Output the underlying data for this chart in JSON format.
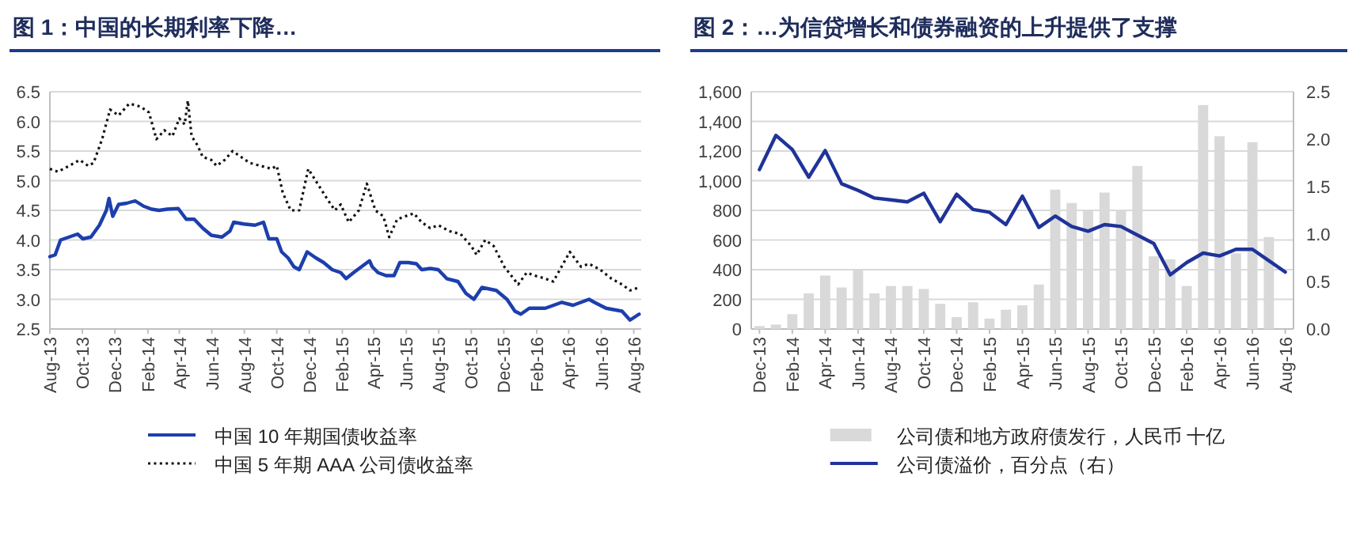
{
  "chart_data": [
    {
      "type": "line",
      "title": "图 1：中国的长期利率下降…",
      "xlim": [
        "2013-08-01",
        "2016-08-15"
      ],
      "ylim": [
        2.5,
        6.5
      ],
      "xticks": [
        {
          "value": "2013-08",
          "label": "Aug-13"
        },
        {
          "value": "2013-10",
          "label": "Oct-13"
        },
        {
          "value": "2013-12",
          "label": "Dec-13"
        },
        {
          "value": "2014-02",
          "label": "Feb-14"
        },
        {
          "value": "2014-04",
          "label": "Apr-14"
        },
        {
          "value": "2014-06",
          "label": "Jun-14"
        },
        {
          "value": "2014-08",
          "label": "Aug-14"
        },
        {
          "value": "2014-10",
          "label": "Oct-14"
        },
        {
          "value": "2014-12",
          "label": "Dec-14"
        },
        {
          "value": "2015-02",
          "label": "Feb-15"
        },
        {
          "value": "2015-04",
          "label": "Apr-15"
        },
        {
          "value": "2015-06",
          "label": "Jun-15"
        },
        {
          "value": "2015-08",
          "label": "Aug-15"
        },
        {
          "value": "2015-10",
          "label": "Oct-15"
        },
        {
          "value": "2015-12",
          "label": "Dec-15"
        },
        {
          "value": "2016-02",
          "label": "Feb-16"
        },
        {
          "value": "2016-04",
          "label": "Apr-16"
        },
        {
          "value": "2016-06",
          "label": "Jun-16"
        },
        {
          "value": "2016-08",
          "label": "Aug-16"
        }
      ],
      "yticks": [
        2.5,
        {
          "value": 3,
          "label": "3.0"
        },
        3.5,
        {
          "value": 4,
          "label": "4.0"
        },
        4.5,
        {
          "value": 5,
          "label": "5.0"
        },
        5.5,
        {
          "value": 6,
          "label": "6.0"
        },
        6.5
      ],
      "grid": "y",
      "legend": "bottom",
      "series": [
        {
          "name": "中国 10 年期国债收益率",
          "color": "#1d3fad",
          "line_style": "solid",
          "x": [
            "2013-08-01",
            "2013-08-11",
            "2013-08-21",
            "2013-09-06",
            "2013-09-22",
            "2013-10-02",
            "2013-10-17",
            "2013-11-02",
            "2013-11-15",
            "2013-11-20",
            "2013-11-27",
            "2013-12-08",
            "2013-12-23",
            "2014-01-08",
            "2014-01-24",
            "2014-02-08",
            "2014-02-22",
            "2014-03-09",
            "2014-03-30",
            "2014-04-14",
            "2014-04-29",
            "2014-05-15",
            "2014-05-31",
            "2014-06-20",
            "2014-07-05",
            "2014-07-12",
            "2014-07-31",
            "2014-08-21",
            "2014-09-06",
            "2014-09-16",
            "2014-10-01",
            "2014-10-10",
            "2014-10-22",
            "2014-11-02",
            "2014-11-12",
            "2014-11-27",
            "2014-12-13",
            "2014-12-28",
            "2015-01-13",
            "2015-01-29",
            "2015-02-08",
            "2015-02-22",
            "2015-03-09",
            "2015-03-24",
            "2015-03-29",
            "2015-04-09",
            "2015-04-24",
            "2015-05-09",
            "2015-05-20",
            "2015-06-05",
            "2015-06-20",
            "2015-06-30",
            "2015-07-16",
            "2015-07-31",
            "2015-08-16",
            "2015-09-06",
            "2015-09-21",
            "2015-10-06",
            "2015-10-21",
            "2015-11-17",
            "2015-12-07",
            "2015-12-22",
            "2016-01-02",
            "2016-01-18",
            "2016-02-17",
            "2016-03-19",
            "2016-04-09",
            "2016-05-09",
            "2016-05-19",
            "2016-06-10",
            "2016-07-10",
            "2016-07-25",
            "2016-08-11"
          ],
          "values": [
            3.72,
            3.75,
            4.0,
            4.05,
            4.1,
            4.02,
            4.05,
            4.25,
            4.5,
            4.7,
            4.4,
            4.6,
            4.62,
            4.66,
            4.57,
            4.52,
            4.5,
            4.52,
            4.53,
            4.35,
            4.35,
            4.2,
            4.08,
            4.05,
            4.15,
            4.3,
            4.27,
            4.25,
            4.3,
            4.02,
            4.02,
            3.8,
            3.7,
            3.55,
            3.5,
            3.8,
            3.7,
            3.62,
            3.5,
            3.45,
            3.35,
            3.45,
            3.55,
            3.65,
            3.55,
            3.45,
            3.4,
            3.4,
            3.62,
            3.62,
            3.6,
            3.5,
            3.52,
            3.5,
            3.35,
            3.3,
            3.1,
            3.0,
            3.2,
            3.15,
            3.0,
            2.8,
            2.75,
            2.85,
            2.85,
            2.95,
            2.9,
            3.0,
            2.95,
            2.85,
            2.8,
            2.65,
            2.75
          ]
        },
        {
          "name": "中国 5 年期 AAA 公司债收益率",
          "color": "#111111",
          "line_style": "dotted",
          "x": [
            "2013-08-01",
            "2013-08-16",
            "2013-09-06",
            "2013-09-26",
            "2013-10-12",
            "2013-10-22",
            "2013-11-07",
            "2013-11-22",
            "2013-12-08",
            "2013-12-28",
            "2014-01-18",
            "2014-02-03",
            "2014-02-17",
            "2014-03-04",
            "2014-03-19",
            "2014-04-01",
            "2014-04-11",
            "2014-04-17",
            "2014-04-24",
            "2014-05-05",
            "2014-05-15",
            "2014-05-31",
            "2014-06-10",
            "2014-06-25",
            "2014-07-10",
            "2014-07-26",
            "2014-08-11",
            "2014-09-01",
            "2014-09-21",
            "2014-10-01",
            "2014-10-12",
            "2014-10-27",
            "2014-11-12",
            "2014-11-29",
            "2014-12-13",
            "2015-01-03",
            "2015-01-18",
            "2015-01-29",
            "2015-02-13",
            "2015-03-04",
            "2015-03-19",
            "2015-04-04",
            "2015-04-19",
            "2015-04-30",
            "2015-05-15",
            "2015-05-30",
            "2015-06-15",
            "2015-06-30",
            "2015-07-16",
            "2015-07-31",
            "2015-08-21",
            "2015-09-11",
            "2015-10-01",
            "2015-10-11",
            "2015-10-27",
            "2015-11-12",
            "2015-12-02",
            "2015-12-28",
            "2016-01-13",
            "2016-01-28",
            "2016-02-17",
            "2016-03-03",
            "2016-04-03",
            "2016-04-24",
            "2016-05-09",
            "2016-05-30",
            "2016-06-20",
            "2016-07-10",
            "2016-07-25",
            "2016-08-11"
          ],
          "values": [
            5.2,
            5.15,
            5.25,
            5.35,
            5.25,
            5.3,
            5.7,
            6.2,
            6.1,
            6.3,
            6.25,
            6.15,
            5.7,
            5.85,
            5.75,
            6.05,
            5.95,
            6.35,
            5.75,
            5.6,
            5.4,
            5.35,
            5.25,
            5.35,
            5.5,
            5.4,
            5.3,
            5.25,
            5.2,
            5.25,
            4.8,
            4.5,
            4.5,
            5.2,
            5.0,
            4.7,
            4.5,
            4.6,
            4.3,
            4.5,
            4.95,
            4.5,
            4.4,
            4.05,
            4.35,
            4.4,
            4.45,
            4.3,
            4.2,
            4.25,
            4.15,
            4.1,
            3.9,
            3.75,
            4.0,
            3.9,
            3.55,
            3.25,
            3.45,
            3.4,
            3.35,
            3.3,
            3.8,
            3.55,
            3.6,
            3.5,
            3.35,
            3.25,
            3.15,
            3.2
          ]
        }
      ]
    },
    {
      "type": "bar",
      "title": "图 2：…为信贷增长和债券融资的上升提供了支撑",
      "categories": [
        "Dec-13",
        null,
        "Feb-14",
        null,
        "Apr-14",
        null,
        "Jun-14",
        null,
        "Aug-14",
        null,
        "Oct-14",
        null,
        "Dec-14",
        null,
        "Feb-15",
        null,
        "Apr-15",
        null,
        "Jun-15",
        null,
        "Aug-15",
        null,
        "Oct-15",
        null,
        "Dec-15",
        null,
        "Feb-16",
        null,
        "Apr-16",
        null,
        "Jun-16",
        null,
        "Aug-16"
      ],
      "ylim": [
        0,
        1600
      ],
      "yticks": [
        0,
        200,
        400,
        600,
        800,
        {
          "value": 1000,
          "label": "1,000"
        },
        {
          "value": 1200,
          "label": "1,200"
        },
        {
          "value": 1400,
          "label": "1,400"
        },
        {
          "value": 1600,
          "label": "1,600"
        }
      ],
      "y2lim": [
        0,
        2.5
      ],
      "y2ticks": [
        {
          "value": 0,
          "label": "0.0"
        },
        0.5,
        {
          "value": 1,
          "label": "1.0"
        },
        1.5,
        {
          "value": 2,
          "label": "2.0"
        },
        2.5
      ],
      "grid": "y",
      "legend": "bottom",
      "series": [
        {
          "name": "公司债和地方政府债发行，人民币  十亿",
          "color": "#d9d9d9",
          "values": [
            20,
            30,
            100,
            240,
            360,
            280,
            400,
            240,
            290,
            290,
            270,
            170,
            80,
            180,
            70,
            130,
            160,
            300,
            940,
            850,
            800,
            920,
            800,
            1100,
            490,
            470,
            290,
            1510,
            1300,
            510,
            1260,
            620,
            null
          ]
        },
        {
          "name": "公司债溢价，百分点（右）",
          "type": "line",
          "axis": "y2",
          "color": "#1f3399",
          "line_style": "solid",
          "values": [
            1.68,
            2.04,
            1.89,
            1.6,
            1.88,
            1.53,
            1.46,
            1.38,
            1.36,
            1.34,
            1.43,
            1.13,
            1.42,
            1.26,
            1.23,
            1.1,
            1.4,
            1.07,
            1.19,
            1.08,
            1.03,
            1.1,
            1.08,
            0.99,
            0.9,
            0.57,
            0.7,
            0.8,
            0.77,
            0.84,
            0.84,
            0.72,
            0.6
          ]
        }
      ]
    }
  ]
}
